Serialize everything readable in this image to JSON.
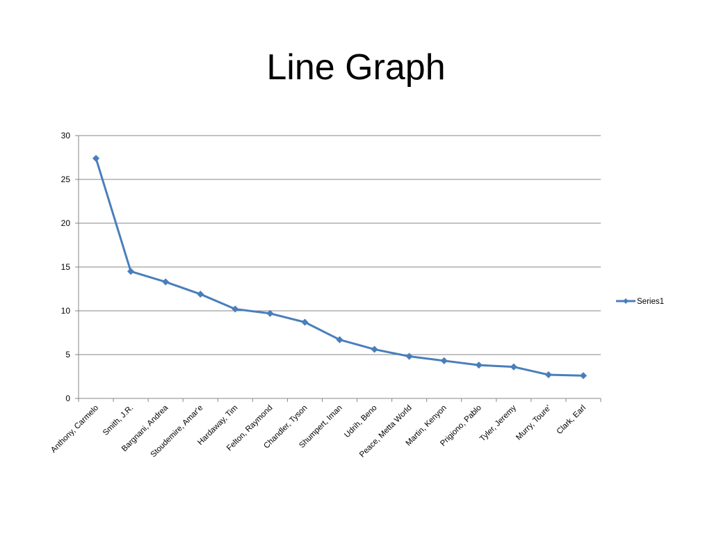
{
  "chart_data": {
    "type": "line",
    "title": "Line Graph",
    "xlabel": "",
    "ylabel": "",
    "categories": [
      "Anthony, Carmelo",
      "Smith, J.R.",
      "Bargnani, Andrea",
      "Stoudemire, Amar'e",
      "Hardaway, Tim",
      "Felton, Raymond",
      "Chandler, Tyson",
      "Shumpert, Iman",
      "Udrih, Beno",
      "Peace, Metta World",
      "Martin, Kenyon",
      "Prigiono, Pablo",
      "Tyler, Jeremy",
      "Murry, Toure'",
      "Clark, Earl"
    ],
    "series": [
      {
        "name": "Series1",
        "color": "#4a7ebb",
        "values": [
          27.4,
          14.5,
          13.3,
          11.9,
          10.2,
          9.7,
          8.7,
          6.7,
          5.6,
          4.8,
          4.3,
          3.8,
          3.6,
          2.7,
          2.6
        ]
      }
    ],
    "ylim": [
      0,
      30
    ],
    "yticks": [
      0,
      5,
      10,
      15,
      20,
      25,
      30
    ],
    "grid": true,
    "legend": "right"
  }
}
